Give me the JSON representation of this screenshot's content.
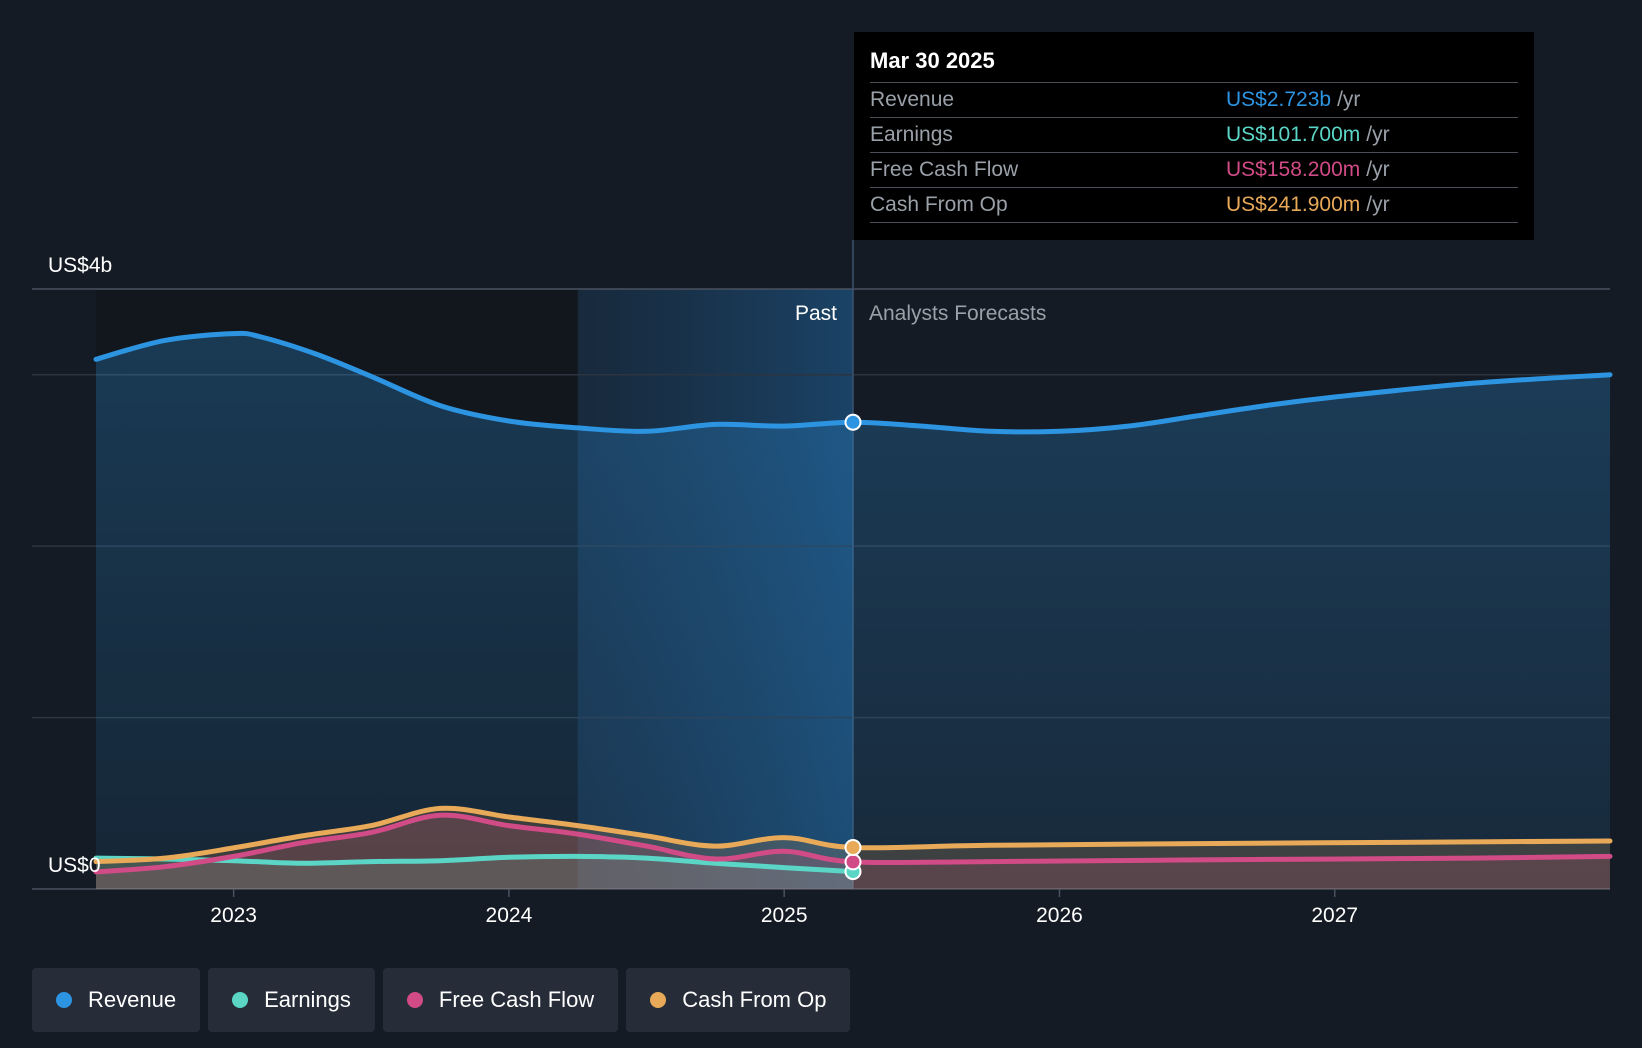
{
  "chart_data": {
    "type": "line",
    "y_axis": {
      "top_label": "US$4b",
      "bottom_label": "US$0",
      "ylim": [
        0,
        3500
      ],
      "gridlines": [
        0,
        1000,
        2000,
        3000,
        3500
      ]
    },
    "x_axis": {
      "ticks": [
        "2023",
        "2024",
        "2025",
        "2026",
        "2027"
      ],
      "xlim": [
        2022.5,
        2028.0
      ]
    },
    "regions": {
      "past_label": "Past",
      "forecast_label": "Analysts Forecasts",
      "highlight_start": 2024.25,
      "divider": 2025.25
    },
    "series": [
      {
        "name": "Revenue",
        "color": "#2d94e1",
        "points": [
          [
            2022.5,
            3090
          ],
          [
            2022.75,
            3200
          ],
          [
            2023.0,
            3240
          ],
          [
            2023.1,
            3220
          ],
          [
            2023.3,
            3120
          ],
          [
            2023.5,
            2990
          ],
          [
            2023.75,
            2820
          ],
          [
            2024.0,
            2730
          ],
          [
            2024.25,
            2690
          ],
          [
            2024.5,
            2670
          ],
          [
            2024.75,
            2710
          ],
          [
            2025.0,
            2700
          ],
          [
            2025.25,
            2723
          ],
          [
            2025.5,
            2700
          ],
          [
            2025.75,
            2670
          ],
          [
            2026.0,
            2670
          ],
          [
            2026.25,
            2700
          ],
          [
            2026.5,
            2760
          ],
          [
            2026.75,
            2820
          ],
          [
            2027.0,
            2870
          ],
          [
            2027.5,
            2950
          ],
          [
            2028.0,
            3000
          ]
        ]
      },
      {
        "name": "Earnings",
        "color": "#5bd6c6",
        "points": [
          [
            2022.5,
            180
          ],
          [
            2022.75,
            175
          ],
          [
            2023.0,
            165
          ],
          [
            2023.25,
            150
          ],
          [
            2023.5,
            160
          ],
          [
            2023.75,
            165
          ],
          [
            2024.0,
            185
          ],
          [
            2024.25,
            190
          ],
          [
            2024.5,
            180
          ],
          [
            2024.75,
            150
          ],
          [
            2025.0,
            125
          ],
          [
            2025.25,
            101.7
          ]
        ]
      },
      {
        "name": "Free Cash Flow",
        "color": "#d14b86",
        "points": [
          [
            2022.5,
            100
          ],
          [
            2022.75,
            130
          ],
          [
            2023.0,
            190
          ],
          [
            2023.25,
            270
          ],
          [
            2023.5,
            330
          ],
          [
            2023.75,
            430
          ],
          [
            2024.0,
            370
          ],
          [
            2024.25,
            320
          ],
          [
            2024.5,
            250
          ],
          [
            2024.75,
            175
          ],
          [
            2025.0,
            220
          ],
          [
            2025.25,
            158.2
          ],
          [
            2025.75,
            160
          ],
          [
            2026.5,
            170
          ],
          [
            2027.5,
            180
          ],
          [
            2028.0,
            190
          ]
        ]
      },
      {
        "name": "Cash From Op",
        "color": "#e8a958",
        "points": [
          [
            2022.5,
            160
          ],
          [
            2022.75,
            180
          ],
          [
            2023.0,
            240
          ],
          [
            2023.25,
            310
          ],
          [
            2023.5,
            370
          ],
          [
            2023.75,
            470
          ],
          [
            2024.0,
            420
          ],
          [
            2024.25,
            370
          ],
          [
            2024.5,
            310
          ],
          [
            2024.75,
            250
          ],
          [
            2025.0,
            300
          ],
          [
            2025.25,
            241.9
          ],
          [
            2025.75,
            255
          ],
          [
            2026.5,
            265
          ],
          [
            2027.5,
            275
          ],
          [
            2028.0,
            280
          ]
        ]
      }
    ]
  },
  "tooltip": {
    "date": "Mar 30 2025",
    "rows": [
      {
        "label": "Revenue",
        "value": "US$2.723b",
        "unit": "/yr",
        "color": "#2d94e1"
      },
      {
        "label": "Earnings",
        "value": "US$101.700m",
        "unit": "/yr",
        "color": "#5bd6c6"
      },
      {
        "label": "Free Cash Flow",
        "value": "US$158.200m",
        "unit": "/yr",
        "color": "#d14b86"
      },
      {
        "label": "Cash From Op",
        "value": "US$241.900m",
        "unit": "/yr",
        "color": "#e8a958"
      }
    ]
  },
  "legend": [
    {
      "label": "Revenue",
      "color": "#2d94e1"
    },
    {
      "label": "Earnings",
      "color": "#5bd6c6"
    },
    {
      "label": "Free Cash Flow",
      "color": "#d14b86"
    },
    {
      "label": "Cash From Op",
      "color": "#e8a958"
    }
  ]
}
